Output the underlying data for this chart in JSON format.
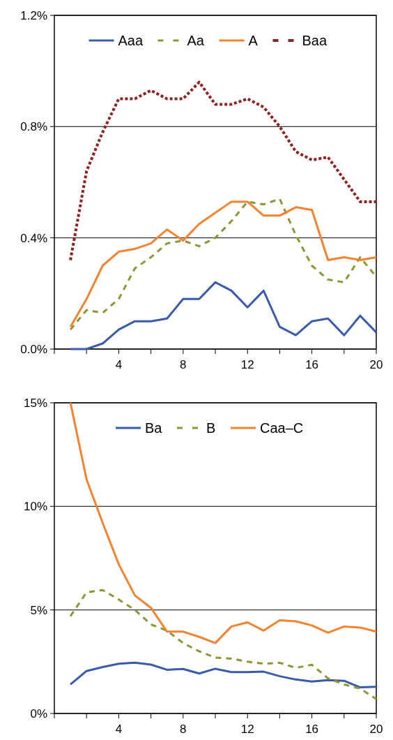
{
  "chart_data": [
    {
      "type": "line",
      "x": [
        1,
        2,
        3,
        4,
        5,
        6,
        7,
        8,
        9,
        10,
        11,
        12,
        13,
        14,
        15,
        16,
        17,
        18,
        19,
        20
      ],
      "xlim": [
        0,
        20
      ],
      "xticks": [
        {
          "value": 0,
          "label": null
        },
        {
          "value": 2,
          "label": null
        },
        4,
        {
          "value": 6,
          "label": null
        },
        8,
        {
          "value": 10,
          "label": null
        },
        12,
        {
          "value": 14,
          "label": null
        },
        16,
        {
          "value": 18,
          "label": null
        },
        20
      ],
      "ylim": [
        0,
        1.2
      ],
      "yticks": [
        {
          "value": 0,
          "label": "0.0%"
        },
        {
          "value": 0.4,
          "label": "0.4%"
        },
        {
          "value": 0.8,
          "label": "0.8%"
        },
        {
          "value": 1.2,
          "label": "1.2%"
        }
      ],
      "grid": "y",
      "legend": "top",
      "marker": "none",
      "series": [
        {
          "name": "Aaa",
          "color": "#3a5ba8",
          "line_style": "solid",
          "values": [
            0,
            0,
            0.02,
            0.07,
            0.1,
            0.1,
            0.11,
            0.18,
            0.18,
            0.24,
            0.21,
            0.15,
            0.21,
            0.08,
            0.05,
            0.1,
            0.11,
            0.05,
            0.12,
            0.06
          ]
        },
        {
          "name": "Aa",
          "color": "#8f9535",
          "line_style": "dashed",
          "values": [
            0.07,
            0.14,
            0.13,
            0.18,
            0.29,
            0.33,
            0.38,
            0.39,
            0.37,
            0.4,
            0.46,
            0.53,
            0.52,
            0.54,
            0.41,
            0.3,
            0.25,
            0.24,
            0.33,
            0.26
          ]
        },
        {
          "name": "A",
          "color": "#f5822f",
          "line_style": "solid",
          "values": [
            0.08,
            0.18,
            0.3,
            0.35,
            0.36,
            0.38,
            0.43,
            0.39,
            0.45,
            0.49,
            0.53,
            0.53,
            0.48,
            0.48,
            0.51,
            0.5,
            0.32,
            0.33,
            0.32,
            0.33
          ]
        },
        {
          "name": "Baa",
          "color": "#8b2323",
          "line_style": "dotted",
          "values": [
            0.32,
            0.64,
            0.78,
            0.9,
            0.9,
            0.93,
            0.9,
            0.9,
            0.96,
            0.88,
            0.88,
            0.9,
            0.87,
            0.8,
            0.71,
            0.68,
            0.69,
            0.61,
            0.53,
            0.53
          ]
        }
      ]
    },
    {
      "type": "line",
      "x": [
        1,
        2,
        3,
        4,
        5,
        6,
        7,
        8,
        9,
        10,
        11,
        12,
        13,
        14,
        15,
        16,
        17,
        18,
        19,
        20
      ],
      "xlim": [
        0,
        20
      ],
      "xticks": [
        {
          "value": 0,
          "label": null
        },
        {
          "value": 2,
          "label": null
        },
        4,
        {
          "value": 6,
          "label": null
        },
        8,
        {
          "value": 10,
          "label": null
        },
        12,
        {
          "value": 14,
          "label": null
        },
        16,
        {
          "value": 18,
          "label": null
        },
        20
      ],
      "ylim": [
        0,
        15
      ],
      "yticks": [
        {
          "value": 0,
          "label": "0%"
        },
        {
          "value": 5,
          "label": "5%"
        },
        {
          "value": 10,
          "label": "10%"
        },
        {
          "value": 15,
          "label": "15%"
        }
      ],
      "grid": "y",
      "legend": "top",
      "marker": "none",
      "series": [
        {
          "name": "Ba",
          "color": "#3a5ba8",
          "line_style": "solid",
          "values": [
            1.4,
            2.05,
            2.24,
            2.4,
            2.45,
            2.36,
            2.11,
            2.15,
            1.93,
            2.16,
            2.0,
            2.0,
            2.02,
            1.8,
            1.64,
            1.54,
            1.61,
            1.58,
            1.26,
            1.29
          ]
        },
        {
          "name": "B",
          "color": "#8f9535",
          "line_style": "dashed",
          "values": [
            4.7,
            5.85,
            5.96,
            5.5,
            5.0,
            4.3,
            4.0,
            3.4,
            3.0,
            2.7,
            2.65,
            2.5,
            2.4,
            2.45,
            2.2,
            2.35,
            1.7,
            1.4,
            1.2,
            0.7
          ]
        },
        {
          "name": "Caa–C",
          "color": "#f5822f",
          "line_style": "solid",
          "values": [
            15,
            11.3,
            9.2,
            7.2,
            5.7,
            5.1,
            3.95,
            3.95,
            3.7,
            3.4,
            4.2,
            4.4,
            4.0,
            4.5,
            4.45,
            4.25,
            3.9,
            4.2,
            4.15,
            3.95
          ]
        }
      ]
    }
  ]
}
